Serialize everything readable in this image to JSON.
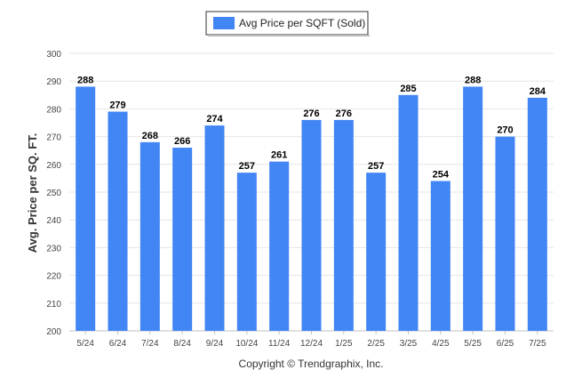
{
  "chart_data": {
    "type": "bar",
    "categories": [
      "5/24",
      "6/24",
      "7/24",
      "8/24",
      "9/24",
      "10/24",
      "11/24",
      "12/24",
      "1/25",
      "2/25",
      "3/25",
      "4/25",
      "5/25",
      "6/25",
      "7/25"
    ],
    "series": [
      {
        "name": "Avg Price per SQFT (Sold)",
        "values": [
          288,
          279,
          268,
          266,
          274,
          257,
          261,
          276,
          276,
          257,
          285,
          254,
          288,
          270,
          284
        ],
        "color": "#4285f4"
      }
    ],
    "ylabel": "Avg. Price per SQ. FT.",
    "xlabel": "",
    "ylim": [
      200,
      300
    ],
    "yticks": [
      200,
      210,
      220,
      230,
      240,
      250,
      260,
      270,
      280,
      290,
      300
    ],
    "grid": true,
    "legend_position": "top-center",
    "data_labels": true
  },
  "footer": {
    "copyright": "Copyright © Trendgraphix, Inc."
  }
}
